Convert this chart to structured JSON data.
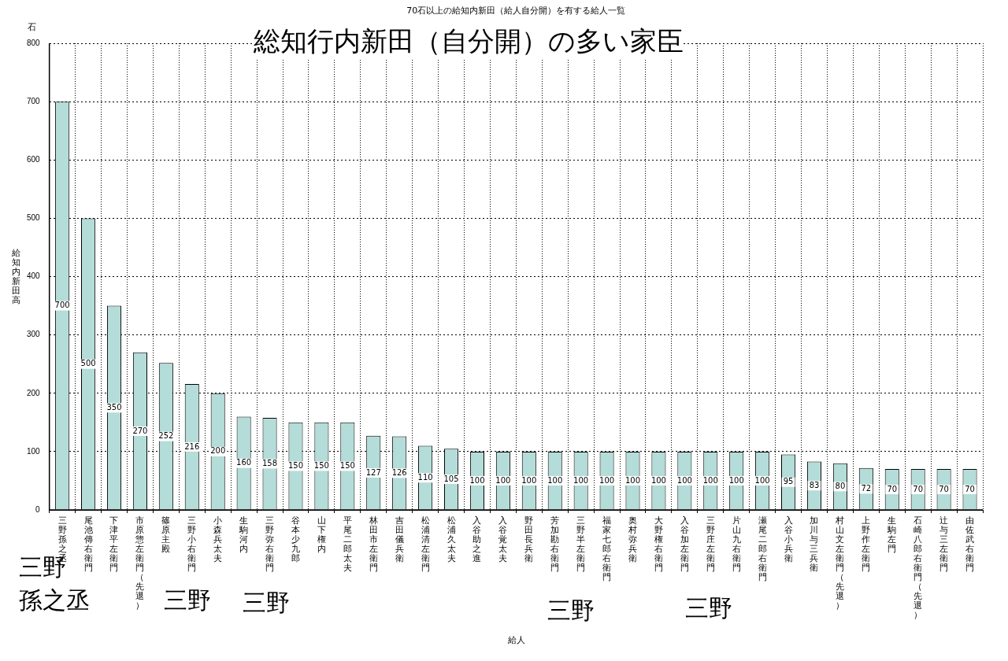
{
  "chart_data": {
    "type": "bar",
    "title": "70石以上の給知内新田（給人自分開）を有する給人一覧",
    "subtitle": "総知行内新田（自分開）の多い家臣",
    "ylabel": "給知内新田高",
    "categories": [
      "三野孫之丞",
      "尾池傳右衛門",
      "下津平左衛門",
      "市原惣左衛門（先退）",
      "篠原主殿",
      "三野小右衛門",
      "小森兵太夫",
      "生駒河内",
      "三野弥右衛門",
      "谷本少九郎",
      "山下権内",
      "平尾二郎太夫",
      "林田市左衛門",
      "吉田儀兵衛",
      "松浦清左衛門",
      "松浦久太夫",
      "入谷助之進",
      "入谷覚太夫",
      "野田長兵衛",
      "芳加勘右衛門",
      "三野半左衛門",
      "福家七郎右衛門",
      "奥村弥兵衛",
      "大野権右衛門",
      "入谷加左衛門",
      "三野庄左衛門",
      "片山九右衛門",
      "瀬尾二郎右衛門",
      "入谷小兵衛",
      "加川与三兵衛",
      "村山文左衛門（先退）",
      "上野作左衛門",
      "生駒左門",
      "石崎八郎右衛門（先退）",
      "辻与三左衛門",
      "由佐武右衛門"
    ],
    "values": [
      700,
      500,
      350,
      270,
      252,
      216,
      200,
      160,
      158,
      150,
      150,
      150,
      127,
      126,
      110,
      105,
      100,
      100,
      100,
      100,
      100,
      100,
      100,
      100,
      100,
      100,
      100,
      100,
      95,
      83,
      80,
      72,
      70,
      70,
      70,
      70
    ],
    "color": "#b4dcd8",
    "ylim": [
      0,
      800
    ],
    "yticks": [
      0,
      100,
      200,
      300,
      400,
      500,
      600,
      700,
      800
    ],
    "grid": true,
    "data_labels": true,
    "annotations": [
      "石",
      "三野孫之丞",
      "三野",
      "三野",
      "三野",
      "三野",
      "給人"
    ]
  }
}
